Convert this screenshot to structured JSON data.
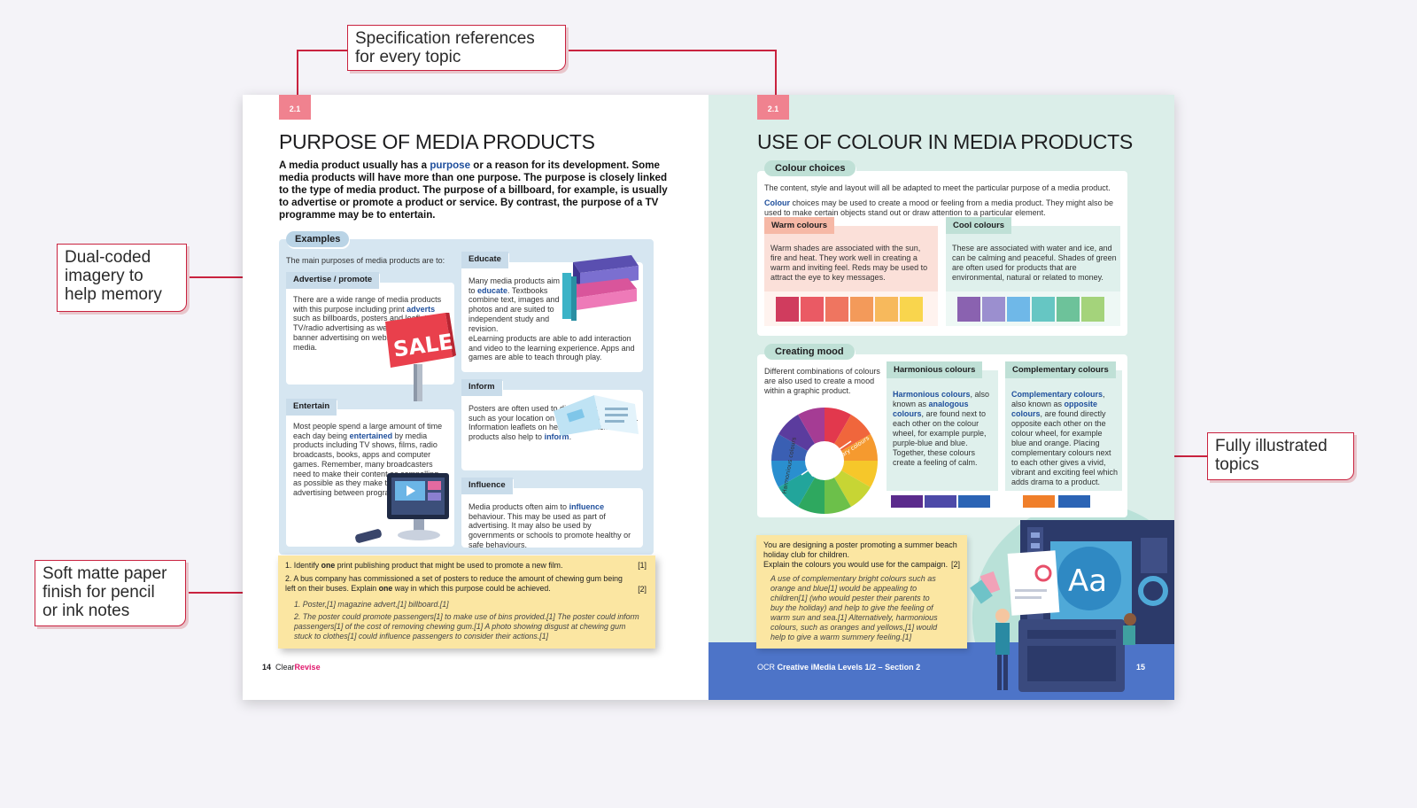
{
  "callouts": {
    "spec": [
      "Specification references",
      "for every topic"
    ],
    "dual": [
      "Dual-coded",
      "imagery to",
      "help memory"
    ],
    "paper": [
      "Soft matte paper",
      "finish for pencil",
      "or ink notes"
    ],
    "illustrated": [
      "Fully illustrated",
      "topics"
    ]
  },
  "left_page": {
    "spec_ref": "2.1",
    "title": "PURPOSE OF MEDIA PRODUCTS",
    "intro": {
      "a": "A media product usually has a ",
      "kw": "purpose",
      "b": " or a reason for its development. Some media products will have more than one purpose. The purpose is closely linked to the type of media product. The purpose of a billboard, for example, is usually to advertise or promote a product or service. By contrast, the purpose of a TV programme may be to entertain."
    },
    "examples_label": "Examples",
    "examples_lead": "The main purposes of media products are to:",
    "advertise": {
      "label": "Advertise / promote",
      "a": "There are a wide range of media products with this purpose including print ",
      "kw": "adverts",
      "b": " such as billboards, posters and leaflets, TV/radio advertising as well as online banner advertising on websites and social media.",
      "sign": "SALE"
    },
    "educate": {
      "label": "Educate",
      "a": "Many media products aim to ",
      "kw": "educate",
      "b": ". Textbooks combine text, images and photos and are suited to independent study and revision.",
      "c": "eLearning products are able to add interaction and video to the learning experience. Apps and games are able to teach through play."
    },
    "entertain": {
      "label": "Entertain",
      "a": "Most people spend a large amount of time each day being ",
      "kw": "entertained",
      "b": " by media products including TV shows, films, radio broadcasts, books, apps and computer games. Remember, many broadcasters need to make their content as compelling as possible as they make their money from advertising between programs."
    },
    "inform": {
      "label": "Inform",
      "a": "Posters are often used to display information such as your location on a map in a theme park. Information leaflets on health or financial products also help to ",
      "kw": "inform",
      "b": "."
    },
    "influence": {
      "label": "Influence",
      "a": "Media products often aim to ",
      "kw": "influence",
      "b": " behaviour. This may be used as part of advertising. It may also be used by governments or schools to promote healthy or safe behaviours."
    },
    "questions": {
      "q1": {
        "num": "1.",
        "a": "Identify ",
        "kw": "one",
        "b": " print publishing product that might be used to promote a new film.",
        "marks": "[1]"
      },
      "q2": {
        "num": "2.",
        "a": "A bus company has commissioned a set of posters to reduce the amount of chewing gum being left on their buses. Explain ",
        "kw": "one",
        "b": " way in which this purpose could be achieved.",
        "marks": "[2]"
      },
      "a1": {
        "num": "1.",
        "text": "Poster,[1] magazine advert,[1] billboard.[1]"
      },
      "a2": {
        "num": "2.",
        "text": "The poster could promote passengers[1] to make use of bins provided.[1] The poster could inform passengers[1] of the cost of removing chewing gum.[1] A photo showing disgust at chewing gum stuck to clothes[1] could influence passengers to consider their actions.[1]"
      }
    },
    "footer": {
      "page": "14",
      "brand_a": "Clear",
      "brand_b": "Revise"
    }
  },
  "right_page": {
    "spec_ref": "2.1",
    "title": "USE OF COLOUR IN MEDIA PRODUCTS",
    "colour_choices": {
      "label": "Colour choices",
      "p1": "The content, style and layout will all be adapted to meet the particular purpose of a media product.",
      "p2kw": "Colour",
      "p2": " choices may be used to create a mood or feeling from a media product. They might also be used to make certain objects stand out or draw attention to a particular element."
    },
    "warm": {
      "label": "Warm colours",
      "text": "Warm shades are associated with the sun, fire and heat. They work well in creating a warm and inviting feel. Reds may be used to attract the eye to key messages.",
      "swatches": [
        "#d03c5e",
        "#ea5a64",
        "#ef7560",
        "#f39a5a",
        "#f7b95c",
        "#f9d54d"
      ]
    },
    "cool": {
      "label": "Cool colours",
      "text": "These are associated with water and ice, and can be calming and peaceful. Shades of green are often used for products that are environmental, natural or related to money.",
      "swatches": [
        "#8a62b0",
        "#9b8fcf",
        "#6fb8e8",
        "#66c6c3",
        "#6dc29a",
        "#a4d37b"
      ]
    },
    "creating_mood": {
      "label": "Creating mood",
      "text": "Different combinations of colours are also used to create a mood within a graphic product.",
      "wheel_a": "Harmonious colours",
      "wheel_b": "Complementary colours"
    },
    "harmonious": {
      "label": "Harmonious colours",
      "kw": "Harmonious colours",
      "a": ", also known as ",
      "kw2": "analogous colours",
      "b": ", are found next to each other on the colour wheel, for example purple, purple-blue and blue. Together, these colours create a feeling of calm.",
      "swatches": [
        "#5b2b8c",
        "#4d4aa8",
        "#2b64b5"
      ]
    },
    "complementary": {
      "label": "Complementary colours",
      "kw": "Complementary colours",
      "a": ", also known as ",
      "kw2": "opposite colours",
      "b": ", are found directly opposite each other on the colour wheel, for example blue and orange. Placing complementary colours next to each other gives a vivid, vibrant and exciting feel which adds drama to a product.",
      "swatches": [
        "#f07f2a",
        "#2b64b5"
      ]
    },
    "task": {
      "q": "You are designing a poster promoting a summer beach holiday club for children.",
      "q2": "Explain the colours you would use for the campaign.",
      "marks": "[2]",
      "answer": "A use of complementary bright colours such as orange and blue[1] would be appealing to children[1] (who would pester their parents to buy the holiday) and help to give the feeling of warm sun and sea.[1] Alternatively, harmonious colours, such as oranges and yellows,[1] would help to give a warm summery feeling.[1]"
    },
    "illustration_text": "Aa",
    "footer": {
      "a": "OCR ",
      "b": "Creative iMedia Levels 1/2 – Section 2",
      "page": "15"
    }
  }
}
